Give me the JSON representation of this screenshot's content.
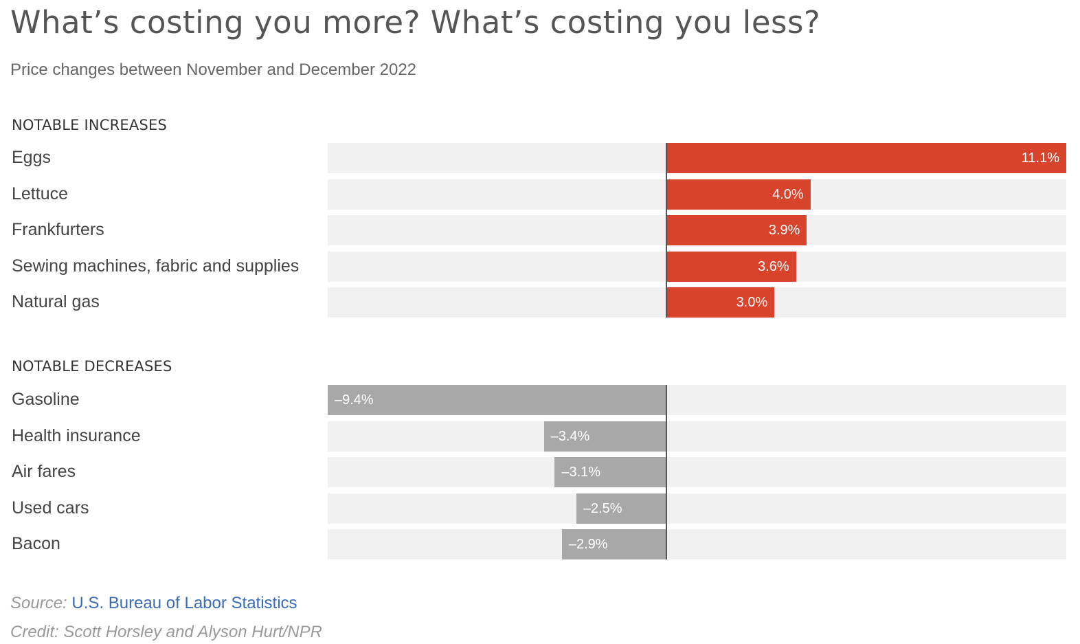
{
  "title": "What’s costing you more? What’s costing you less?",
  "subtitle": "Price changes between November and December 2022",
  "colors": {
    "increase": "#d8432b",
    "decrease": "#a8a8a8",
    "track": "#f1f1f1"
  },
  "chart_data": {
    "type": "bar",
    "orientation": "horizontal",
    "title": "What’s costing you more? What’s costing you less?",
    "subtitle": "Price changes between November and December 2022",
    "xlim": [
      -9.4,
      11.1
    ],
    "groups": [
      {
        "heading": "NOTABLE INCREASES",
        "categories": [
          "Eggs",
          "Lettuce",
          "Frankfurters",
          "Sewing machines, fabric and supplies",
          "Natural gas"
        ],
        "values": [
          11.1,
          4.0,
          3.9,
          3.6,
          3.0
        ],
        "labels": [
          "11.1%",
          "4.0%",
          "3.9%",
          "3.6%",
          "3.0%"
        ]
      },
      {
        "heading": "NOTABLE DECREASES",
        "categories": [
          "Gasoline",
          "Health insurance",
          "Air fares",
          "Used cars",
          "Bacon"
        ],
        "values": [
          -9.4,
          -3.4,
          -3.1,
          -2.5,
          -2.9
        ],
        "labels": [
          "–9.4%",
          "–3.4%",
          "–3.1%",
          "–2.5%",
          "–2.9%"
        ]
      }
    ]
  },
  "source": {
    "prefix": "Source:",
    "link_text": "U.S. Bureau of Labor Statistics"
  },
  "credit": "Credit: Scott Horsley and Alyson Hurt/NPR"
}
